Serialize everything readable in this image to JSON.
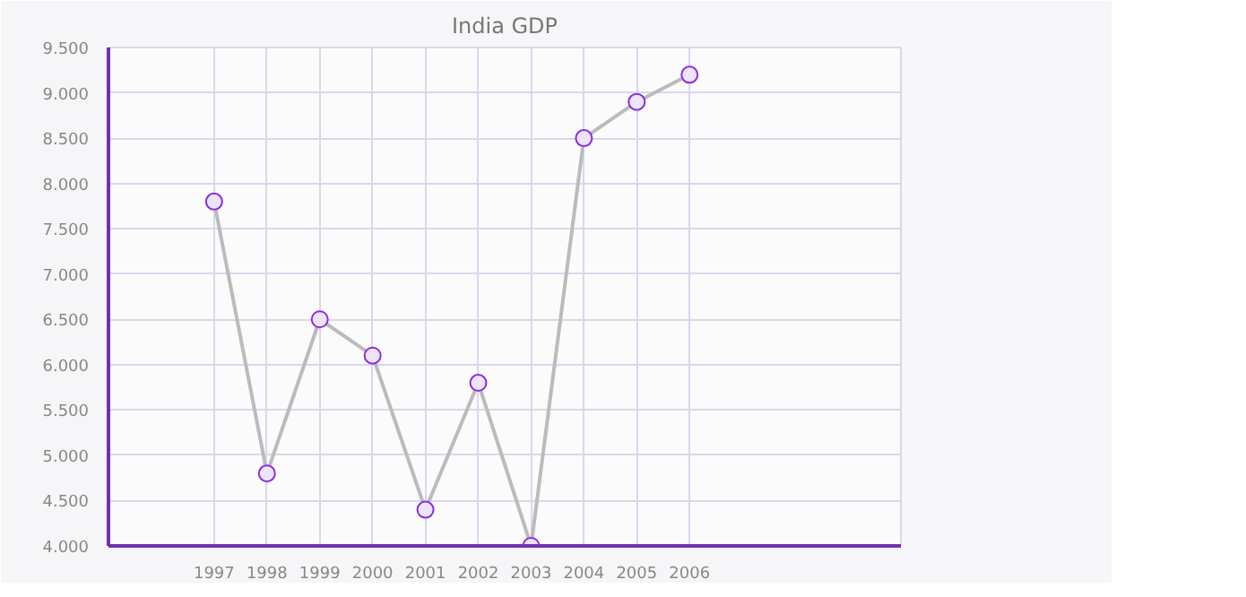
{
  "chart_data": {
    "type": "line",
    "title": "India GDP",
    "x": [
      1997,
      1998,
      1999,
      2000,
      2001,
      2002,
      2003,
      2004,
      2005,
      2006
    ],
    "series": [
      {
        "color": "#bbbbbb",
        "values": [
          7.8,
          4.8,
          6.5,
          6.1,
          4.4,
          5.8,
          4.0,
          8.5,
          8.9,
          9.2
        ]
      }
    ],
    "xlim": [
      1995,
      2010
    ],
    "xticks": [
      1997,
      1998,
      1999,
      2000,
      2001,
      2002,
      2003,
      2004,
      2005,
      2006
    ],
    "ylim": [
      4,
      9.5
    ],
    "yticks": [
      {
        "value": 4,
        "label": "4.000"
      },
      {
        "value": 4.5,
        "label": "4.500"
      },
      {
        "value": 5,
        "label": "5.000"
      },
      {
        "value": 5.5,
        "label": "5.500"
      },
      {
        "value": 6,
        "label": "6.000"
      },
      {
        "value": 6.5,
        "label": "6.500"
      },
      {
        "value": 7,
        "label": "7.000"
      },
      {
        "value": 7.5,
        "label": "7.500"
      },
      {
        "value": 8,
        "label": "8.000"
      },
      {
        "value": 8.5,
        "label": "8.500"
      },
      {
        "value": 9,
        "label": "9.000"
      },
      {
        "value": 9.5,
        "label": "9.500"
      }
    ],
    "grid": true,
    "marker": "circle",
    "line_style": "solid"
  }
}
